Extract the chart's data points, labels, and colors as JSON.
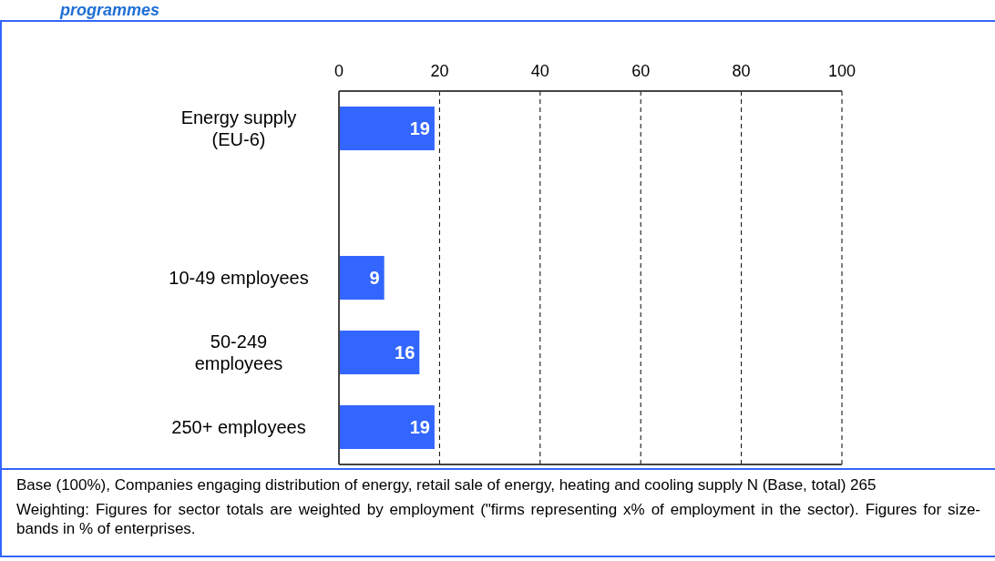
{
  "chart_data": {
    "type": "bar",
    "orientation": "horizontal",
    "title": "programmes",
    "categories": [
      "Energy supply (EU-6)",
      null,
      "10-49 employees",
      "50-249 employees",
      "250+ employees"
    ],
    "values": [
      19,
      null,
      9,
      16,
      19
    ],
    "color": "#3366ff",
    "data_labels": true,
    "xlim": [
      0,
      100
    ],
    "xticks": [
      0,
      20,
      40,
      60,
      80,
      100
    ],
    "grid": "x",
    "legend": false,
    "annotations": [
      "Base (100%), Companies engaging distribution of energy, retail sale of energy, heating and cooling supply N (Base, total) 265",
      "Weighting: Figures for sector totals are weighted by employment (\"firms representing x% of employment in the sector). Figures for size-bands in % of enterprises."
    ]
  }
}
